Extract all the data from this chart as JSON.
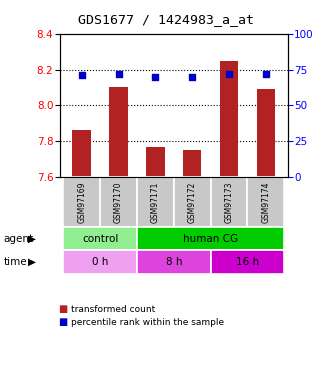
{
  "title": "GDS1677 / 1424983_a_at",
  "samples": [
    "GSM97169",
    "GSM97170",
    "GSM97171",
    "GSM97172",
    "GSM97173",
    "GSM97174"
  ],
  "transformed_counts": [
    7.86,
    8.1,
    7.77,
    7.75,
    8.25,
    8.09
  ],
  "percentile_ranks": [
    71,
    72,
    70,
    70,
    72,
    72
  ],
  "ylim_left": [
    7.6,
    8.4
  ],
  "ylim_right": [
    0,
    100
  ],
  "yticks_left": [
    7.6,
    7.8,
    8.0,
    8.2,
    8.4
  ],
  "yticks_right": [
    0,
    25,
    50,
    75,
    100
  ],
  "bar_color": "#b22222",
  "dot_color": "#0000cc",
  "agent_groups": [
    {
      "label": "control",
      "start": 0,
      "end": 2,
      "color": "#90ee90"
    },
    {
      "label": "human CG",
      "start": 2,
      "end": 6,
      "color": "#00cc00"
    }
  ],
  "time_groups": [
    {
      "label": "0 h",
      "start": 0,
      "end": 2,
      "color": "#f0a0f0"
    },
    {
      "label": "8 h",
      "start": 2,
      "end": 4,
      "color": "#dd44dd"
    },
    {
      "label": "16 h",
      "start": 4,
      "end": 6,
      "color": "#cc00cc"
    }
  ],
  "time_colors": [
    "#f0a0f0",
    "#dd44dd",
    "#cc00cc"
  ],
  "sample_bg_color": "#c8c8c8",
  "agent_label": "agent",
  "time_label": "time",
  "legend_red": "transformed count",
  "legend_blue": "percentile rank within the sample",
  "bar_width": 0.5,
  "baseline": 7.6,
  "grid_lines": [
    7.8,
    8.0,
    8.2
  ]
}
